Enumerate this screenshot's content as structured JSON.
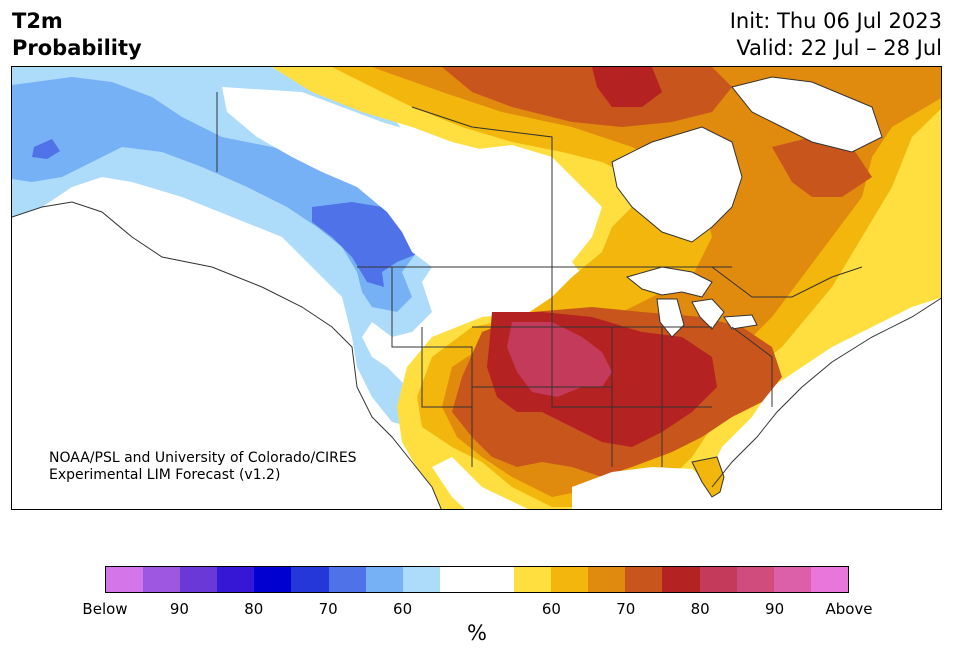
{
  "header": {
    "variable": "T2m",
    "quantity": "Probability",
    "init": "Init: Thu 06 Jul 2023",
    "valid": "Valid: 22 Jul – 28 Jul"
  },
  "map": {
    "credit_line1": "NOAA/PSL and University of Colorado/CIRES",
    "credit_line2": "Experimental LIM Forecast (v1.2)",
    "region": "North America"
  },
  "colorbar": {
    "colors": [
      "#d575ea",
      "#9d57e0",
      "#6b38d8",
      "#3717d6",
      "#0000d0",
      "#2637d9",
      "#4f72e8",
      "#76b0f5",
      "#addcfb",
      "#ffffff",
      "#ffffff",
      "#ffdf3f",
      "#f2b60c",
      "#e08a0e",
      "#c8551c",
      "#b42222",
      "#c43a5a",
      "#cf4c7c",
      "#db5fa9",
      "#e876db"
    ],
    "ticks": [
      "Below",
      "90",
      "80",
      "70",
      "60",
      "60",
      "70",
      "80",
      "90",
      "Above"
    ],
    "unit": "%"
  },
  "legend_colors": {
    "cold_light": "#addcfb",
    "cold_mid": "#76b0f5",
    "cold_strong": "#4f72e8",
    "warm_light": "#ffdf3f",
    "warm_mid": "#f2b60c",
    "warm_orange": "#e08a0e",
    "warm_rust": "#c8551c",
    "warm_red": "#b42222",
    "warm_crimson": "#c43a5a"
  }
}
